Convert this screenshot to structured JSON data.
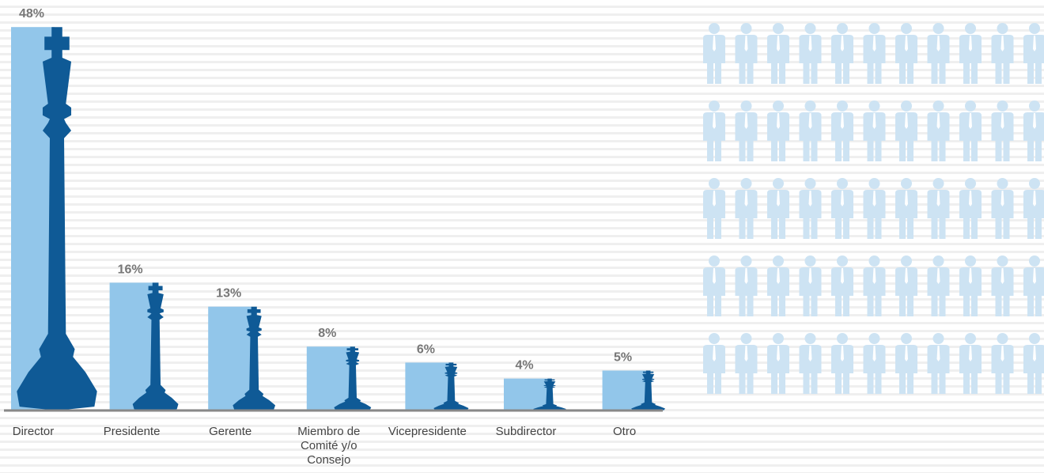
{
  "chart_data": {
    "type": "bar",
    "categories": [
      "Director",
      "Presidente",
      "Gerente",
      "Miembro de Comité y/o Consejo",
      "Vicepresidente",
      "Subdirector",
      "Otro"
    ],
    "values": [
      48,
      16,
      13,
      8,
      6,
      4,
      5
    ],
    "value_labels": [
      "48%",
      "16%",
      "13%",
      "8%",
      "6%",
      "4%",
      "5%"
    ],
    "color": "#92c6ea",
    "piece_color": "#0f5a96"
  }
}
